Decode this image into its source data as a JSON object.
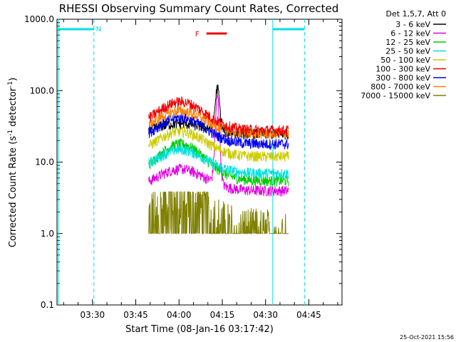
{
  "chart_data": {
    "type": "line",
    "title": "RHESSI Observing Summary Count Rates, Corrected",
    "xlabel": "Start Time (08-Jan-16 03:17:42)",
    "ylabel_main": "Corrected Count Rate (s",
    "ylabel_sup": "-1",
    "ylabel_mid": " detector",
    "ylabel_sup2": "-1",
    "ylabel_end": ")",
    "yscale": "log",
    "ylim": [
      0.1,
      1000
    ],
    "xlim_minutes": [
      "03:17:42",
      "04:56:30"
    ],
    "x_tick_labels": [
      "03:30",
      "03:45",
      "04:00",
      "04:15",
      "04:30",
      "04:45"
    ],
    "x_tick_minutes": [
      210,
      225,
      240,
      255,
      270,
      285
    ],
    "y_tick_labels": [
      "0.1",
      "1.0",
      "10.0",
      "100.0",
      "1000.0"
    ],
    "y_tick_values": [
      0.1,
      1,
      10,
      100,
      1000
    ],
    "legend_title": "Det 1,5,7, Att 0",
    "legend_position": "top-right",
    "data_window_minutes": [
      229.5,
      278.0
    ],
    "series": [
      {
        "name": "3 - 6 keV",
        "color": "#000000",
        "base": 25,
        "peak": 35,
        "spike": 110
      },
      {
        "name": "6 - 12 keV",
        "color": "#e000e0",
        "base": 4.0,
        "peak": 8,
        "spike": 85
      },
      {
        "name": "12 - 25 keV",
        "color": "#00cc00",
        "base": 5.5,
        "peak": 18,
        "spike": 0
      },
      {
        "name": "25 - 50 keV",
        "color": "#00e0e0",
        "base": 7.0,
        "peak": 15,
        "spike": 0
      },
      {
        "name": "50 - 100 keV",
        "color": "#cccc00",
        "base": 12,
        "peak": 27,
        "spike": 0
      },
      {
        "name": "100 - 300 keV",
        "color": "#ee0000",
        "base": 28,
        "peak": 70,
        "spike": 0
      },
      {
        "name": "300 - 800 keV",
        "color": "#0000ee",
        "base": 18,
        "peak": 42,
        "spike": 0
      },
      {
        "name": "800 - 7000 keV",
        "color": "#ff7f00",
        "base": 25,
        "peak": 52,
        "spike": 0
      },
      {
        "name": "7000 - 15000 keV",
        "color": "#7f7f00",
        "base": 1.0,
        "peak": 3.5,
        "spike": 0
      }
    ],
    "annotations": {
      "night_label": "N",
      "flare_label": "F",
      "night_color": "#00e0e0",
      "flare_color": "#ee0000"
    }
  },
  "footer": {
    "timestamp": "25-Oct-2021 15:56"
  }
}
